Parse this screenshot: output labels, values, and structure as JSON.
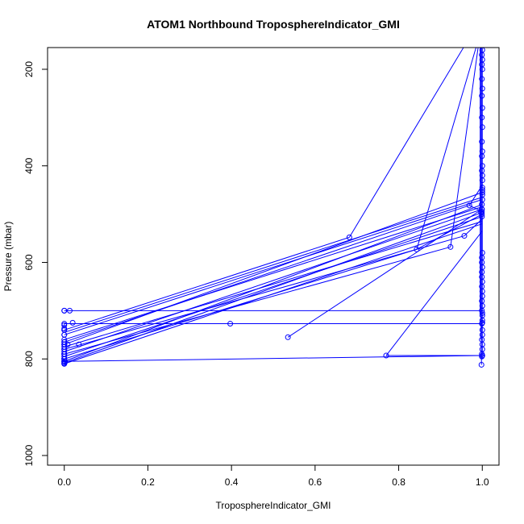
{
  "chart_data": {
    "type": "scatter",
    "title": "ATOM1 Northbound TroposphereIndicator_GMI",
    "xlabel": "TroposphereIndicator_GMI",
    "ylabel": "Pressure (mbar)",
    "xlim": [
      -0.04,
      1.04
    ],
    "ylim": [
      1020,
      155
    ],
    "y_reversed": true,
    "x_ticks": [
      "0.0",
      "0.2",
      "0.4",
      "0.6",
      "0.8",
      "1.0"
    ],
    "x_tick_values": [
      0,
      0.2,
      0.4,
      0.6,
      0.8,
      1.0
    ],
    "y_ticks": [
      "200",
      "400",
      "600",
      "800",
      "1000"
    ],
    "y_tick_values": [
      200,
      400,
      600,
      800,
      1000
    ],
    "grid": false,
    "legend": "none",
    "color": "#0000ff",
    "series": [
      {
        "x": [
          0.0,
          0.002,
          0.0,
          0.999,
          1.0,
          0.998,
          0.999,
          1.0,
          1.0,
          0.77,
          0.999,
          1.0,
          1.0,
          0.0,
          0.02,
          0.0,
          0.397,
          0.999,
          1.0,
          1.0,
          0.0,
          0.013,
          0.999,
          1.0,
          1.0,
          0.0,
          0.0,
          0.035,
          0.008,
          0.0,
          0.0,
          0.0,
          0.0,
          0.0,
          0.0,
          0.0,
          0.682,
          0.0,
          0.0,
          0.0,
          0.843,
          0.535,
          0.924,
          0.957,
          0.0,
          0.969,
          1.0,
          0.0,
          0.0,
          0.997,
          0.0,
          0.0,
          0.999,
          1.0,
          0.0,
          0.0,
          0.999,
          1.0,
          0.0,
          0.0,
          0.999,
          1.0,
          0.0,
          0.0,
          0.999,
          1.0,
          0.0,
          0.0,
          0.999,
          1.0,
          0.0,
          0.0,
          0.999,
          1.0,
          0.999,
          1.0,
          0.999,
          1.0,
          0.999,
          1.0,
          0.999,
          1.0,
          0.999,
          1.0,
          0.999,
          1.0,
          0.999,
          1.0,
          0.999,
          1.0,
          0.999,
          1.0,
          0.999,
          1.0,
          0.999,
          1.0,
          0.999,
          1.0,
          0.999,
          1.0,
          0.999,
          1.0
        ],
        "y": [
          810,
          806,
          800,
          795,
          793,
          812,
          790,
          780,
          770,
          793,
          760,
          750,
          740,
          727,
          725,
          737,
          727,
          727,
          725,
          720,
          700,
          700,
          700,
          705,
          710,
          700,
          770,
          770,
          770,
          805,
          808,
          740,
          765,
          775,
          760,
          750,
          548,
          770,
          790,
          800,
          573,
          755,
          568,
          545,
          730,
          482,
          455,
          800,
          810,
          497,
          780,
          805,
          490,
          470,
          795,
          805,
          495,
          460,
          780,
          790,
          500,
          450,
          770,
          785,
          505,
          445,
          740,
          750,
          490,
          430,
          765,
          790,
          480,
          420,
          410,
          400,
          380,
          370,
          350,
          320,
          300,
          280,
          255,
          240,
          220,
          200,
          190,
          180,
          170,
          160,
          630,
          660,
          600,
          580,
          590,
          610,
          620,
          640,
          650,
          670,
          680,
          690
        ]
      }
    ],
    "segments": [
      {
        "x1": 0.0,
        "y1": 805,
        "x2": 1.0,
        "y2": 793
      },
      {
        "x1": 0.77,
        "y1": 793,
        "x2": 1.0,
        "y2": 793
      },
      {
        "x1": 0.77,
        "y1": 793,
        "x2": 1.0,
        "y2": 535
      },
      {
        "x1": 0.0,
        "y1": 700,
        "x2": 1.0,
        "y2": 700
      },
      {
        "x1": 0.0,
        "y1": 727,
        "x2": 1.0,
        "y2": 727
      },
      {
        "x1": 0.035,
        "y1": 727,
        "x2": 0.397,
        "y2": 727
      },
      {
        "x1": 0.0,
        "y1": 770,
        "x2": 1.0,
        "y2": 455
      },
      {
        "x1": 0.0,
        "y1": 740,
        "x2": 0.682,
        "y2": 548
      },
      {
        "x1": 0.682,
        "y1": 548,
        "x2": 0.955,
        "y2": 155
      },
      {
        "x1": 0.0,
        "y1": 800,
        "x2": 0.843,
        "y2": 573
      },
      {
        "x1": 0.843,
        "y1": 573,
        "x2": 0.985,
        "y2": 155
      },
      {
        "x1": 0.843,
        "y1": 573,
        "x2": 1.0,
        "y2": 500
      },
      {
        "x1": 0.535,
        "y1": 755,
        "x2": 0.999,
        "y2": 490
      },
      {
        "x1": 0.924,
        "y1": 568,
        "x2": 0.99,
        "y2": 155
      },
      {
        "x1": 0.957,
        "y1": 545,
        "x2": 1.0,
        "y2": 510
      },
      {
        "x1": 0.0,
        "y1": 810,
        "x2": 1.0,
        "y2": 520
      },
      {
        "x1": 0.0,
        "y1": 805,
        "x2": 1.0,
        "y2": 480
      },
      {
        "x1": 0.0,
        "y1": 790,
        "x2": 0.924,
        "y2": 568
      },
      {
        "x1": 0.0,
        "y1": 780,
        "x2": 0.957,
        "y2": 545
      },
      {
        "x1": 0.0,
        "y1": 765,
        "x2": 0.969,
        "y2": 482
      },
      {
        "x1": 0.0,
        "y1": 750,
        "x2": 0.999,
        "y2": 470
      },
      {
        "x1": 0.0,
        "y1": 808,
        "x2": 0.999,
        "y2": 497
      },
      {
        "x1": 0.0,
        "y1": 795,
        "x2": 1.0,
        "y2": 505
      },
      {
        "x1": 0.0,
        "y1": 785,
        "x2": 0.999,
        "y2": 490
      },
      {
        "x1": 0.0,
        "y1": 775,
        "x2": 1.0,
        "y2": 515
      },
      {
        "x1": 0.0,
        "y1": 760,
        "x2": 0.999,
        "y2": 485
      },
      {
        "x1": 0.0,
        "y1": 745,
        "x2": 1.0,
        "y2": 465
      },
      {
        "x1": 0.969,
        "y1": 482,
        "x2": 1.0,
        "y2": 440
      },
      {
        "x1": 0.969,
        "y1": 482,
        "x2": 1.0,
        "y2": 495
      },
      {
        "x1": 0.995,
        "y1": 155,
        "x2": 0.995,
        "y2": 700
      },
      {
        "x1": 0.998,
        "y1": 155,
        "x2": 0.998,
        "y2": 812
      },
      {
        "x1": 1.0,
        "y1": 155,
        "x2": 1.0,
        "y2": 800
      },
      {
        "x1": 0.997,
        "y1": 155,
        "x2": 0.997,
        "y2": 760
      },
      {
        "x1": 0.0,
        "y1": 800,
        "x2": 0.0,
        "y2": 810
      },
      {
        "x1": 0.0,
        "y1": 727,
        "x2": 0.0,
        "y2": 737
      }
    ]
  }
}
